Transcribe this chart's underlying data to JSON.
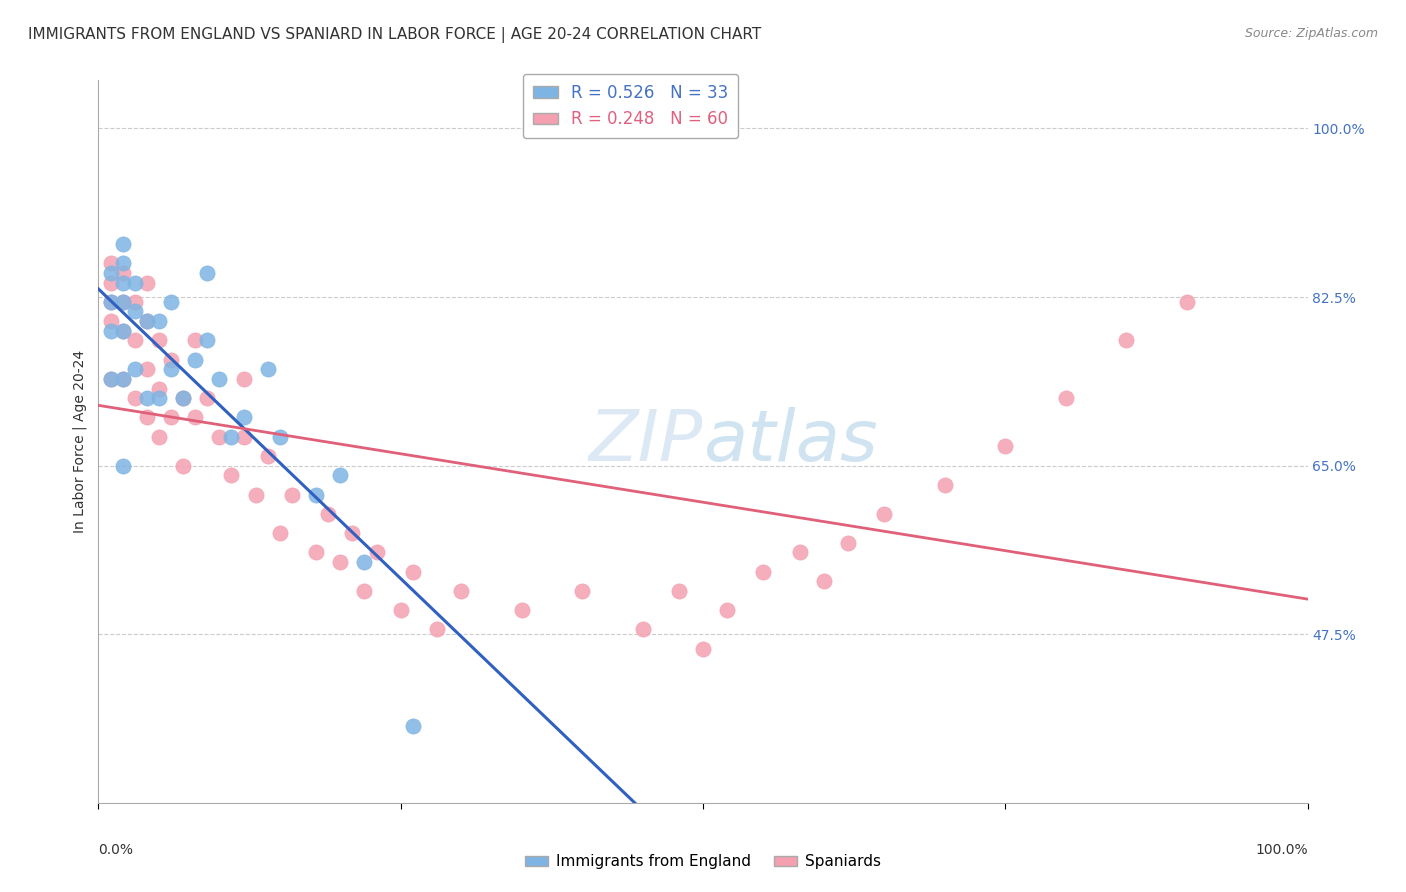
{
  "title": "IMMIGRANTS FROM ENGLAND VS SPANIARD IN LABOR FORCE | AGE 20-24 CORRELATION CHART",
  "source": "Source: ZipAtlas.com",
  "ylabel": "In Labor Force | Age 20-24",
  "xlim": [
    0.0,
    1.0
  ],
  "ylim": [
    0.3,
    1.05
  ],
  "legend_r1": "R = 0.526",
  "legend_n1": "N = 33",
  "legend_r2": "R = 0.248",
  "legend_n2": "N = 60",
  "color_england": "#7EB4E3",
  "color_spaniard": "#F4A0B0",
  "trendline_england": "#3060C0",
  "trendline_spaniard": "#E0607A",
  "watermark_zip": "ZIP",
  "watermark_atlas": "atlas",
  "england_x": [
    0.01,
    0.01,
    0.01,
    0.01,
    0.02,
    0.02,
    0.02,
    0.02,
    0.02,
    0.02,
    0.02,
    0.03,
    0.03,
    0.03,
    0.04,
    0.04,
    0.05,
    0.05,
    0.06,
    0.06,
    0.07,
    0.08,
    0.09,
    0.09,
    0.1,
    0.11,
    0.12,
    0.14,
    0.15,
    0.18,
    0.2,
    0.22,
    0.26
  ],
  "england_y": [
    0.74,
    0.79,
    0.82,
    0.85,
    0.65,
    0.74,
    0.79,
    0.82,
    0.84,
    0.86,
    0.88,
    0.75,
    0.81,
    0.84,
    0.72,
    0.8,
    0.72,
    0.8,
    0.75,
    0.82,
    0.72,
    0.76,
    0.78,
    0.85,
    0.74,
    0.68,
    0.7,
    0.75,
    0.68,
    0.62,
    0.64,
    0.55,
    0.38
  ],
  "spaniard_x": [
    0.01,
    0.01,
    0.01,
    0.01,
    0.01,
    0.02,
    0.02,
    0.02,
    0.02,
    0.03,
    0.03,
    0.03,
    0.04,
    0.04,
    0.04,
    0.04,
    0.05,
    0.05,
    0.05,
    0.06,
    0.06,
    0.07,
    0.07,
    0.08,
    0.08,
    0.09,
    0.1,
    0.11,
    0.12,
    0.12,
    0.13,
    0.14,
    0.15,
    0.16,
    0.18,
    0.19,
    0.2,
    0.21,
    0.22,
    0.23,
    0.25,
    0.26,
    0.28,
    0.3,
    0.35,
    0.4,
    0.45,
    0.48,
    0.5,
    0.52,
    0.55,
    0.58,
    0.6,
    0.62,
    0.65,
    0.7,
    0.75,
    0.8,
    0.85,
    0.9
  ],
  "spaniard_y": [
    0.74,
    0.8,
    0.82,
    0.84,
    0.86,
    0.74,
    0.79,
    0.82,
    0.85,
    0.72,
    0.78,
    0.82,
    0.7,
    0.75,
    0.8,
    0.84,
    0.68,
    0.73,
    0.78,
    0.7,
    0.76,
    0.65,
    0.72,
    0.7,
    0.78,
    0.72,
    0.68,
    0.64,
    0.68,
    0.74,
    0.62,
    0.66,
    0.58,
    0.62,
    0.56,
    0.6,
    0.55,
    0.58,
    0.52,
    0.56,
    0.5,
    0.54,
    0.48,
    0.52,
    0.5,
    0.52,
    0.48,
    0.52,
    0.46,
    0.5,
    0.54,
    0.56,
    0.53,
    0.57,
    0.6,
    0.63,
    0.67,
    0.72,
    0.78,
    0.82
  ],
  "grid_color": "#CCCCCC",
  "background_color": "#FFFFFF",
  "title_fontsize": 11,
  "axis_label_fontsize": 10,
  "ytick_vals": [
    0.475,
    0.65,
    0.825,
    1.0
  ],
  "ytick_labels": [
    "47.5%",
    "65.0%",
    "82.5%",
    "100.0%"
  ]
}
